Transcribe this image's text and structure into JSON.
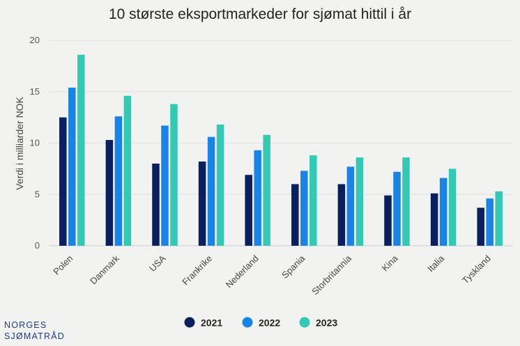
{
  "chart_data": {
    "type": "bar",
    "title": "10 største eksportmarkeder for sjømat hittil i år",
    "ylabel": "Verdi i milliarder NOK",
    "xlabel": "",
    "ylim": [
      0,
      20
    ],
    "yticks": [
      0,
      5,
      10,
      15,
      20
    ],
    "grid": true,
    "legend_position": "bottom",
    "categories": [
      "Polen",
      "Danmark",
      "USA",
      "Frankrike",
      "Nederland",
      "Spania",
      "Storbritannia",
      "Kina",
      "Italia",
      "Tyskland"
    ],
    "series": [
      {
        "name": "2021",
        "color": "#0a1f5e",
        "values": [
          12.5,
          10.3,
          8.0,
          8.2,
          6.9,
          6.0,
          6.0,
          4.9,
          5.1,
          3.7
        ]
      },
      {
        "name": "2022",
        "color": "#1a84e6",
        "values": [
          15.4,
          12.6,
          11.7,
          10.6,
          9.3,
          7.3,
          7.7,
          7.2,
          6.6,
          4.6
        ]
      },
      {
        "name": "2023",
        "color": "#33c9b4",
        "values": [
          18.6,
          14.6,
          13.8,
          11.8,
          10.8,
          8.8,
          8.6,
          8.6,
          7.5,
          5.3
        ]
      }
    ]
  },
  "logo": {
    "line1": "NORGES",
    "line2": "SJØMATRÅD"
  }
}
